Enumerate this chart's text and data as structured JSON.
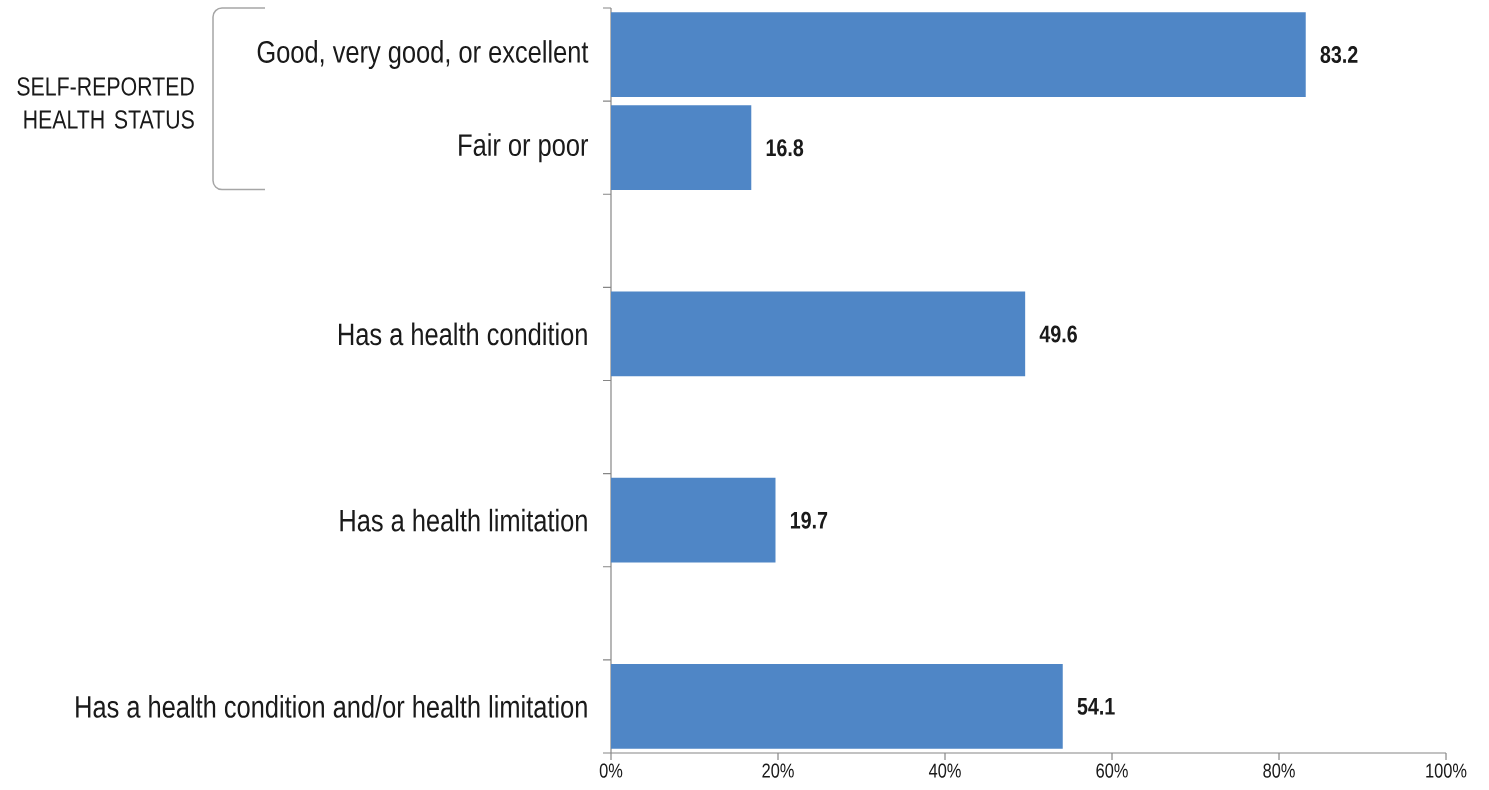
{
  "chart_data": {
    "type": "bar",
    "orientation": "horizontal",
    "categories": [
      "Good, very good, or excellent",
      "Fair or poor",
      null,
      "Has a health condition",
      null,
      "Has a health limitation",
      null,
      "Has a health condition and/or health limitation"
    ],
    "values": [
      83.2,
      16.8,
      null,
      49.6,
      null,
      19.7,
      null,
      54.1
    ],
    "color": "#4f86c6",
    "xlim": [
      0,
      100
    ],
    "xticks": [
      {
        "value": 0,
        "label": "0%"
      },
      {
        "value": 20,
        "label": "20%"
      },
      {
        "value": 40,
        "label": "40%"
      },
      {
        "value": 60,
        "label": "60%"
      },
      {
        "value": 80,
        "label": "80%"
      },
      {
        "value": 100,
        "label": "100%"
      }
    ],
    "data_labels": true,
    "annotations": [
      "SELF-REPORTED HEALTH STATUS"
    ]
  }
}
